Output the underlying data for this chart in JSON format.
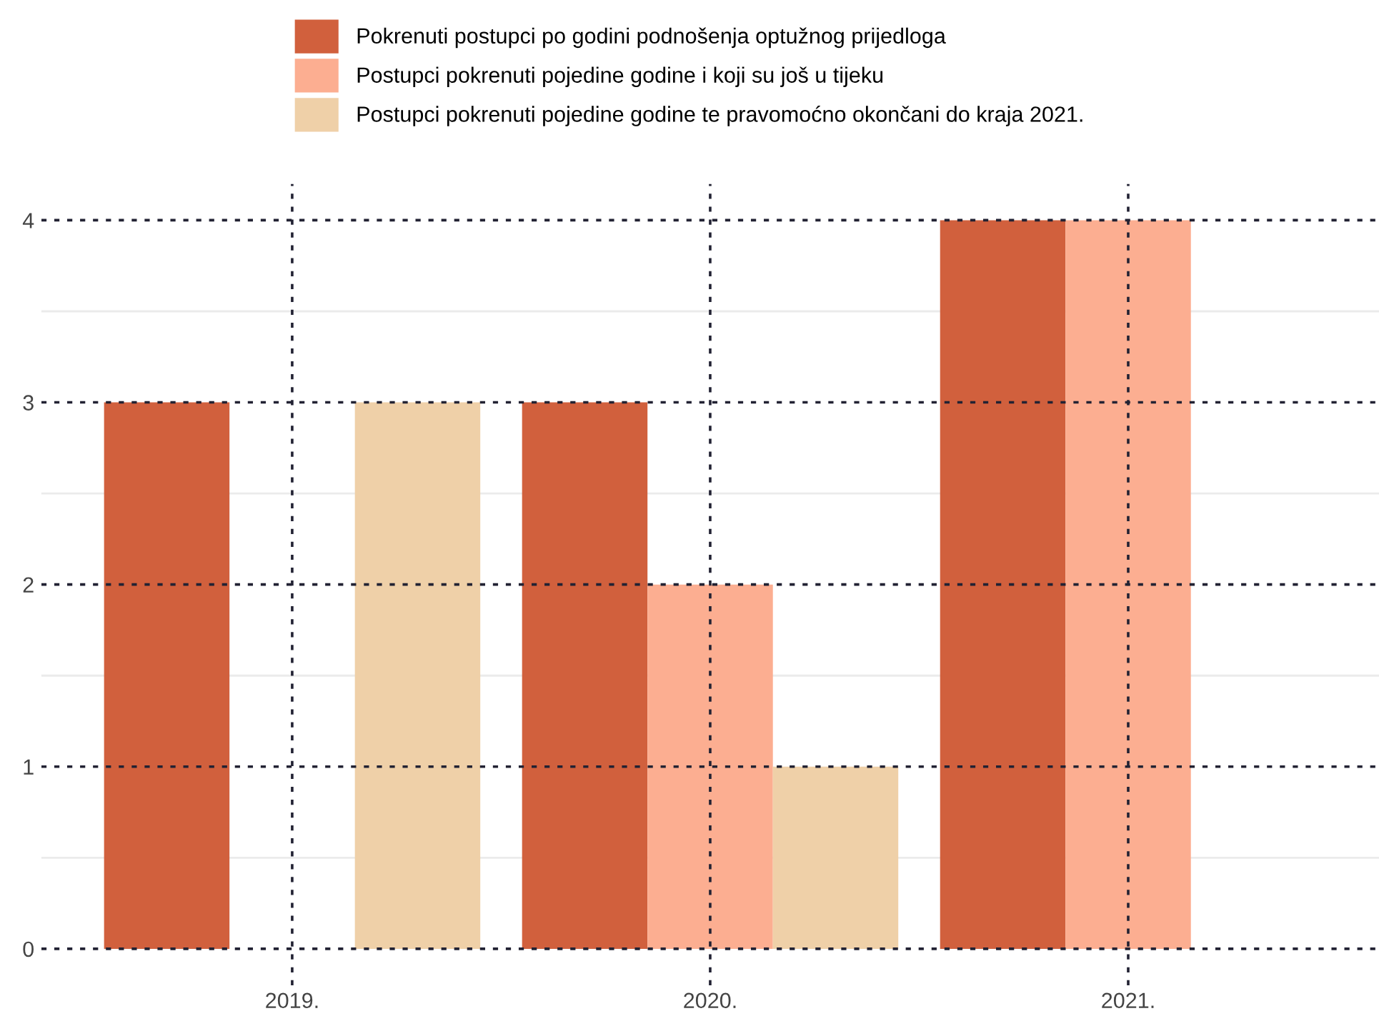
{
  "chart_data": {
    "type": "bar",
    "categories": [
      "2019.",
      "2020.",
      "2021."
    ],
    "series": [
      {
        "name": "Pokrenuti postupci po godini podnošenja optužnog prijedloga",
        "color": "#d1603d",
        "values": [
          3,
          3,
          4
        ]
      },
      {
        "name": "Postupci pokrenuti pojedine godine i koji su još u tijeku",
        "color": "#fcae91",
        "values": [
          0,
          2,
          4
        ]
      },
      {
        "name": "Postupci pokrenuti pojedine godine te pravomoćno okončani do kraja 2021.",
        "color": "#efd0a8",
        "values": [
          3,
          1,
          0
        ]
      }
    ],
    "ylim": [
      -0.2,
      4.2
    ],
    "yticks": [
      0,
      1,
      2,
      3,
      4
    ],
    "grid": true,
    "legend": "top"
  }
}
